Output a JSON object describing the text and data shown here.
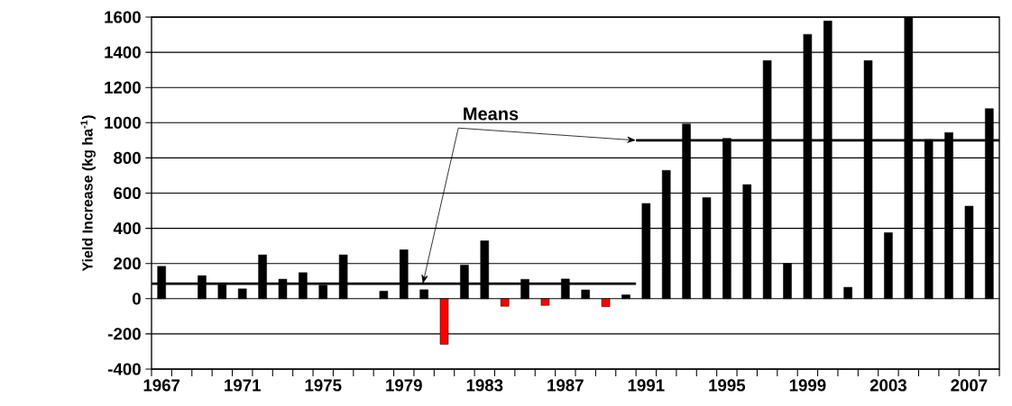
{
  "chart_data": {
    "type": "bar",
    "ylabel": "Yield Increase (kg ha$^{-1}$)",
    "x": [
      1967,
      1968,
      1969,
      1970,
      1971,
      1972,
      1973,
      1974,
      1975,
      1976,
      1977,
      1978,
      1979,
      1980,
      1981,
      1982,
      1983,
      1984,
      1985,
      1986,
      1987,
      1988,
      1989,
      1990,
      1991,
      1992,
      1993,
      1994,
      1995,
      1996,
      1997,
      1998,
      1999,
      2000,
      2001,
      2002,
      2003,
      2004,
      2005,
      2006,
      2007,
      2008
    ],
    "values": [
      184,
      null,
      131,
      80,
      56,
      249,
      111,
      148,
      77,
      249,
      null,
      43,
      278,
      51,
      -259,
      191,
      329,
      -43,
      110,
      -38,
      112,
      50,
      -45,
      22,
      541,
      729,
      993,
      575,
      911,
      648,
      1353,
      201,
      1502,
      1578,
      65,
      1353,
      375,
      1600,
      904,
      944,
      526,
      1080
    ],
    "colors": [
      "#000000",
      "#000000",
      "#000000",
      "#000000",
      "#000000",
      "#000000",
      "#000000",
      "#000000",
      "#000000",
      "#000000",
      "#000000",
      "#000000",
      "#000000",
      "#000000",
      "#ff0000",
      "#000000",
      "#000000",
      "#ff0000",
      "#000000",
      "#ff0000",
      "#000000",
      "#000000",
      "#ff0000",
      "#000000",
      "#000000",
      "#000000",
      "#000000",
      "#000000",
      "#000000",
      "#000000",
      "#000000",
      "#000000",
      "#000000",
      "#000000",
      "#000000",
      "#000000",
      "#000000",
      "#000000",
      "#000000",
      "#000000",
      "#000000",
      "#000000"
    ],
    "series": [
      {
        "type": "line",
        "color": "#000000",
        "x": [
          1966.5,
          1990.5
        ],
        "values": [
          85,
          85
        ]
      },
      {
        "type": "line",
        "color": "#000000",
        "x": [
          1990.5,
          2008.5
        ],
        "values": [
          900,
          900
        ]
      }
    ],
    "annotations": [
      {
        "text": "Means",
        "x": 1990.5,
        "y": 900
      }
    ],
    "xlim": [
      1966.5,
      2008.5
    ],
    "xticks": [
      1967,
      1971,
      1975,
      1979,
      1983,
      1987,
      1991,
      1995,
      1999,
      2003,
      2007,
      {
        "value": 1966.5,
        "label": null
      },
      {
        "value": 1967.5,
        "label": null
      },
      {
        "value": 1968.5,
        "label": null
      },
      {
        "value": 1969.5,
        "label": null
      },
      {
        "value": 1970.5,
        "label": null
      },
      {
        "value": 1971.5,
        "label": null
      },
      {
        "value": 1972.5,
        "label": null
      },
      {
        "value": 1973.5,
        "label": null
      },
      {
        "value": 1974.5,
        "label": null
      },
      {
        "value": 1975.5,
        "label": null
      },
      {
        "value": 1976.5,
        "label": null
      },
      {
        "value": 1977.5,
        "label": null
      },
      {
        "value": 1978.5,
        "label": null
      },
      {
        "value": 1979.5,
        "label": null
      },
      {
        "value": 1980.5,
        "label": null
      },
      {
        "value": 1981.5,
        "label": null
      },
      {
        "value": 1982.5,
        "label": null
      },
      {
        "value": 1983.5,
        "label": null
      },
      {
        "value": 1984.5,
        "label": null
      },
      {
        "value": 1985.5,
        "label": null
      },
      {
        "value": 1986.5,
        "label": null
      },
      {
        "value": 1987.5,
        "label": null
      },
      {
        "value": 1988.5,
        "label": null
      },
      {
        "value": 1989.5,
        "label": null
      },
      {
        "value": 1990.5,
        "label": null
      },
      {
        "value": 1991.5,
        "label": null
      },
      {
        "value": 1992.5,
        "label": null
      },
      {
        "value": 1993.5,
        "label": null
      },
      {
        "value": 1994.5,
        "label": null
      },
      {
        "value": 1995.5,
        "label": null
      },
      {
        "value": 1996.5,
        "label": null
      },
      {
        "value": 1997.5,
        "label": null
      },
      {
        "value": 1998.5,
        "label": null
      },
      {
        "value": 1999.5,
        "label": null
      },
      {
        "value": 2000.5,
        "label": null
      },
      {
        "value": 2001.5,
        "label": null
      },
      {
        "value": 2002.5,
        "label": null
      },
      {
        "value": 2003.5,
        "label": null
      },
      {
        "value": 2004.5,
        "label": null
      },
      {
        "value": 2005.5,
        "label": null
      },
      {
        "value": 2006.5,
        "label": null
      },
      {
        "value": 2007.5,
        "label": null
      },
      {
        "value": 2008.5,
        "label": null
      }
    ],
    "ylim": [
      -400,
      1600
    ],
    "yticks": [
      -400,
      -200,
      0,
      200,
      400,
      600,
      800,
      1000,
      1200,
      1400,
      1600
    ],
    "grid": "y"
  }
}
